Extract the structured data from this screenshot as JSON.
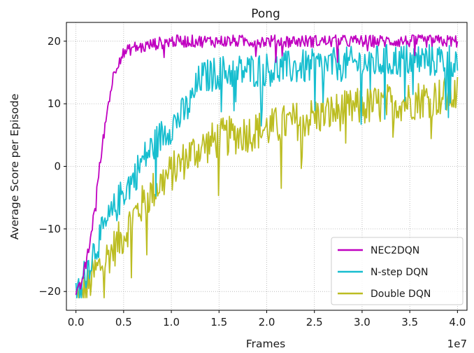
{
  "chart_data": {
    "type": "line",
    "title": "Pong",
    "xlabel": "Frames",
    "ylabel": "Average Score per Episode",
    "x_multiplier_label": "1e7",
    "xlim": [
      -0.1,
      4.1
    ],
    "ylim": [
      -23.0,
      23.0
    ],
    "xticks": [
      0.0,
      0.5,
      1.0,
      1.5,
      2.0,
      2.5,
      3.0,
      3.5,
      4.0
    ],
    "xtick_labels": [
      "0.0",
      "0.5",
      "1.0",
      "1.5",
      "2.0",
      "2.5",
      "3.0",
      "3.5",
      "4.0"
    ],
    "yticks": [
      -20,
      -10,
      0,
      10,
      20
    ],
    "ytick_labels": [
      "−20",
      "−10",
      "0",
      "10",
      "20"
    ],
    "grid": true,
    "legend_position": "lower-right",
    "series": [
      {
        "name": "NEC2DQN",
        "color": "#c000c0",
        "x": [
          0.0,
          0.05,
          0.1,
          0.15,
          0.2,
          0.25,
          0.3,
          0.35,
          0.4,
          0.45,
          0.5,
          0.6,
          0.7,
          0.8,
          1.0,
          1.2,
          1.5,
          2.0,
          2.5,
          3.0,
          3.5,
          4.0
        ],
        "y": [
          -21,
          -19,
          -16,
          -12,
          -6,
          0,
          6,
          11,
          15,
          17,
          18,
          19,
          19,
          19.5,
          20,
          20,
          20,
          20,
          20,
          20,
          20,
          20
        ],
        "noise": 1.0
      },
      {
        "name": "N-step DQN",
        "color": "#17becf",
        "x": [
          0.0,
          0.1,
          0.2,
          0.3,
          0.4,
          0.5,
          0.6,
          0.7,
          0.8,
          0.9,
          1.0,
          1.1,
          1.2,
          1.25,
          1.3,
          1.5,
          2.0,
          2.5,
          3.0,
          3.5,
          4.0
        ],
        "y": [
          -21,
          -17,
          -13,
          -10,
          -7,
          -4,
          -2,
          1,
          3,
          5,
          6.5,
          8,
          10,
          12,
          14,
          15,
          15.5,
          16,
          16.5,
          17,
          17
        ],
        "noise": 2.8
      },
      {
        "name": "Double DQN",
        "color": "#bcbd22",
        "x": [
          0.0,
          0.1,
          0.2,
          0.3,
          0.4,
          0.5,
          0.6,
          0.8,
          1.0,
          1.2,
          1.5,
          2.0,
          2.5,
          3.0,
          3.5,
          4.0
        ],
        "y": [
          -21,
          -20,
          -17,
          -15,
          -13,
          -11,
          -8,
          -4,
          -1,
          2,
          4.5,
          6,
          8,
          9.5,
          10.5,
          11.5
        ],
        "noise": 3.2
      }
    ]
  }
}
